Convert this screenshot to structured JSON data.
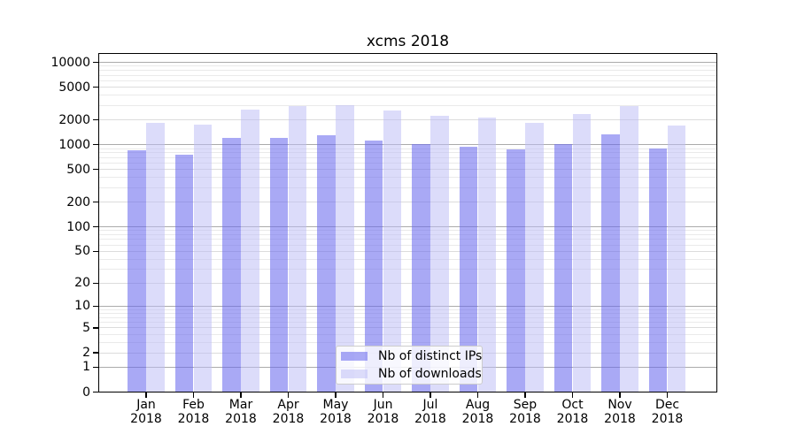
{
  "chart_data": {
    "type": "bar",
    "title": "xcms 2018",
    "categories": [
      "Jan",
      "Feb",
      "Mar",
      "Apr",
      "May",
      "Jun",
      "Jul",
      "Aug",
      "Sep",
      "Oct",
      "Nov",
      "Dec"
    ],
    "x_tick_second_line": "2018",
    "series": [
      {
        "name": "Nb of distinct IPs",
        "color": "#6666ee",
        "opacity": 0.56,
        "values": [
          860,
          760,
          1215,
          1225,
          1320,
          1140,
          1030,
          940,
          890,
          1020,
          1340,
          895
        ]
      },
      {
        "name": "Nb of downloads",
        "color": "#bbbbf6",
        "opacity": 0.52,
        "values": [
          1840,
          1740,
          2660,
          2940,
          3010,
          2615,
          2270,
          2160,
          1860,
          2370,
          2960,
          1730
        ]
      }
    ],
    "y_axis": {
      "scale": "log10(value+1)",
      "ticks": [
        0,
        1,
        2,
        5,
        10,
        20,
        50,
        100,
        200,
        500,
        1000,
        2000,
        5000,
        10000
      ],
      "min": 0,
      "max": 10000
    },
    "grid": "horizontal",
    "legend": {
      "position": "lower center inside",
      "entries": [
        "Nb of distinct IPs",
        "Nb of downloads"
      ]
    },
    "colors": {
      "grid_decade": "#ababab",
      "grid_minor": "#eaeaea",
      "axis": "#000000",
      "background": "#ffffff"
    }
  }
}
